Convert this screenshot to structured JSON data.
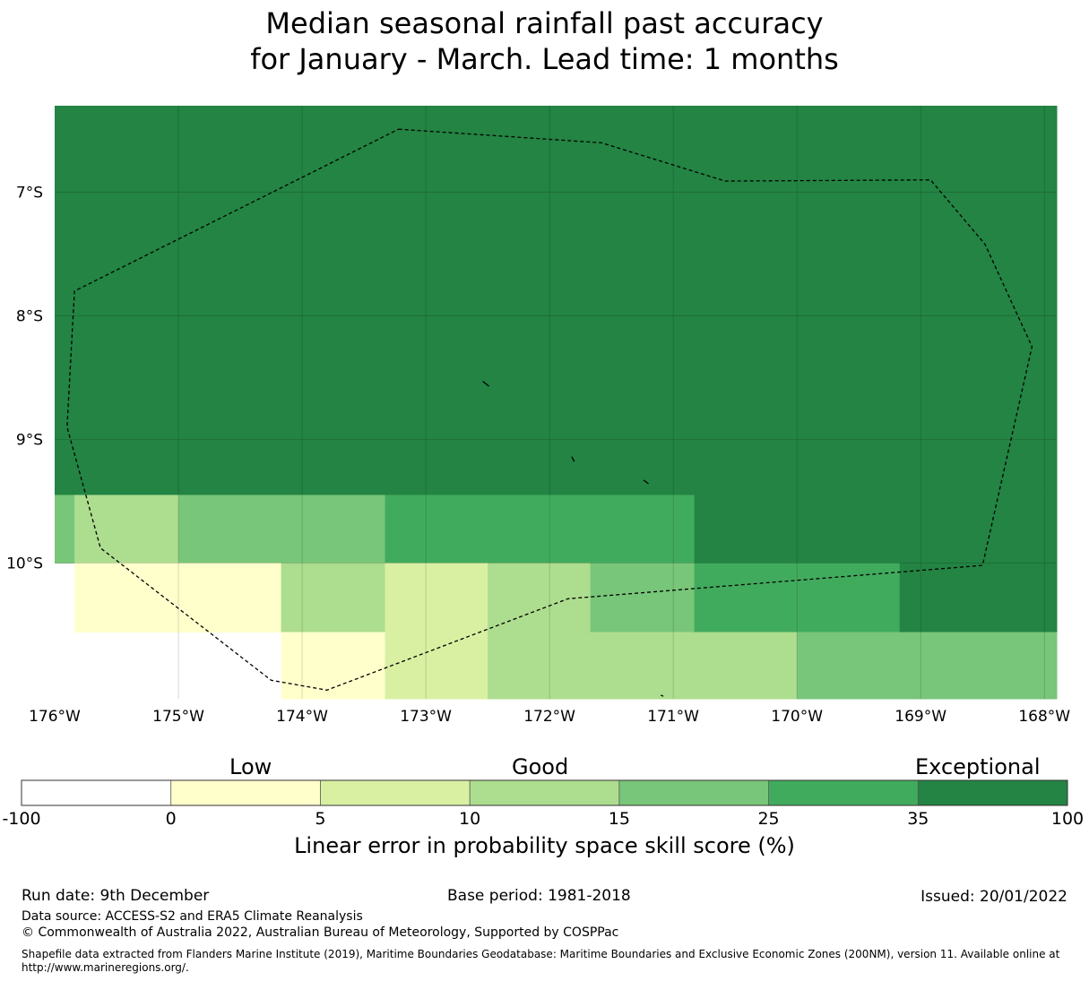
{
  "title": {
    "line1": "Median seasonal rainfall past accuracy",
    "line2": "for January - March. Lead time: 1 months"
  },
  "map": {
    "lon_range": [
      -176,
      -167.9
    ],
    "lat_range": [
      -11.1,
      -6.3
    ],
    "lon_ticks": [
      {
        "lon": -176,
        "label": "176°W"
      },
      {
        "lon": -175,
        "label": "175°W"
      },
      {
        "lon": -174,
        "label": "174°W"
      },
      {
        "lon": -173,
        "label": "173°W"
      },
      {
        "lon": -172,
        "label": "172°W"
      },
      {
        "lon": -171,
        "label": "171°W"
      },
      {
        "lon": -170,
        "label": "170°W"
      },
      {
        "lon": -169,
        "label": "169°W"
      },
      {
        "lon": -168,
        "label": "168°W"
      }
    ],
    "lat_ticks": [
      {
        "lat": -7,
        "label": "7°S"
      },
      {
        "lat": -8,
        "label": "8°S"
      },
      {
        "lat": -9,
        "label": "9°S"
      },
      {
        "lat": -10,
        "label": "10°S"
      }
    ],
    "cells": [
      {
        "lon0": -176.0,
        "lon1": -167.9,
        "lat0": -9.45,
        "lat1": -6.3,
        "score": 40
      },
      {
        "lon0": -176.0,
        "lon1": -175.84,
        "lat0": -10.0,
        "lat1": -9.45,
        "score": 20
      },
      {
        "lon0": -175.84,
        "lon1": -175.0,
        "lat0": -10.0,
        "lat1": -9.45,
        "score": 12
      },
      {
        "lon0": -175.0,
        "lon1": -173.33,
        "lat0": -10.0,
        "lat1": -9.45,
        "score": 20
      },
      {
        "lon0": -173.33,
        "lon1": -170.83,
        "lat0": -10.0,
        "lat1": -9.45,
        "score": 30
      },
      {
        "lon0": -170.83,
        "lon1": -167.9,
        "lat0": -10.0,
        "lat1": -9.45,
        "score": 40
      },
      {
        "lon0": -175.84,
        "lon1": -174.17,
        "lat0": -10.56,
        "lat1": -10.0,
        "score": 2
      },
      {
        "lon0": -174.17,
        "lon1": -173.33,
        "lat0": -10.56,
        "lat1": -10.0,
        "score": 12
      },
      {
        "lon0": -173.33,
        "lon1": -172.5,
        "lat0": -10.56,
        "lat1": -10.0,
        "score": 7
      },
      {
        "lon0": -172.5,
        "lon1": -171.67,
        "lat0": -10.56,
        "lat1": -10.0,
        "score": 12
      },
      {
        "lon0": -171.67,
        "lon1": -170.83,
        "lat0": -10.56,
        "lat1": -10.0,
        "score": 20
      },
      {
        "lon0": -170.83,
        "lon1": -169.17,
        "lat0": -10.56,
        "lat1": -10.0,
        "score": 30
      },
      {
        "lon0": -169.17,
        "lon1": -167.9,
        "lat0": -10.56,
        "lat1": -10.0,
        "score": 40
      },
      {
        "lon0": -174.17,
        "lon1": -173.33,
        "lat0": -11.1,
        "lat1": -10.56,
        "score": 2
      },
      {
        "lon0": -173.33,
        "lon1": -172.5,
        "lat0": -11.1,
        "lat1": -10.56,
        "score": 7
      },
      {
        "lon0": -172.5,
        "lon1": -170.0,
        "lat0": -11.1,
        "lat1": -10.56,
        "score": 12
      },
      {
        "lon0": -170.0,
        "lon1": -167.9,
        "lat0": -11.1,
        "lat1": -10.56,
        "score": 20
      }
    ],
    "eez_boundary": [
      [
        -173.22,
        -6.49
      ],
      [
        -171.58,
        -6.6
      ],
      [
        -170.58,
        -6.91
      ],
      [
        -168.92,
        -6.9
      ],
      [
        -168.48,
        -7.42
      ],
      [
        -168.1,
        -8.25
      ],
      [
        -168.5,
        -10.02
      ],
      [
        -171.85,
        -10.29
      ],
      [
        -173.8,
        -11.03
      ],
      [
        -174.25,
        -10.95
      ],
      [
        -175.63,
        -9.88
      ],
      [
        -175.9,
        -8.9
      ],
      [
        -175.84,
        -7.8
      ],
      [
        -173.22,
        -6.49
      ]
    ],
    "islands": [
      [
        [
          -172.54,
          -8.53
        ],
        [
          -172.49,
          -8.57
        ]
      ],
      [
        [
          -171.82,
          -9.14
        ],
        [
          -171.8,
          -9.18
        ]
      ],
      [
        [
          -171.24,
          -9.33
        ],
        [
          -171.2,
          -9.36
        ]
      ],
      [
        [
          -171.1,
          -11.07
        ],
        [
          -171.08,
          -11.08
        ]
      ]
    ]
  },
  "colorbar": {
    "title": "Linear error in probability space skill score (%)",
    "categories": [
      "Low",
      "Good",
      "Exceptional"
    ],
    "bins": [
      {
        "min": -100,
        "max": 0,
        "color": "#ffffff"
      },
      {
        "min": 0,
        "max": 5,
        "color": "#ffffcc"
      },
      {
        "min": 5,
        "max": 10,
        "color": "#d9f0a3"
      },
      {
        "min": 10,
        "max": 15,
        "color": "#addd8e"
      },
      {
        "min": 15,
        "max": 25,
        "color": "#78c679"
      },
      {
        "min": 25,
        "max": 35,
        "color": "#41ab5d"
      },
      {
        "min": 35,
        "max": 100,
        "color": "#238443"
      }
    ],
    "tick_labels": [
      "-100",
      "0",
      "5",
      "10",
      "15",
      "25",
      "35",
      "100"
    ]
  },
  "footer": {
    "run_date": "Run date: 9th December",
    "base_period": "Base period: 1981-2018",
    "issued": "Issued: 20/01/2022",
    "data_source": "Data source: ACCESS-S2 and ERA5 Climate Reanalysis",
    "copyright": "© Commonwealth of Australia 2022, Australian Bureau of Meteorology, Supported by COSPPac",
    "shapefile": "Shapefile data extracted from Flanders Marine Institute (2019), Maritime Boundaries Geodatabase: Maritime Boundaries and Exclusive Economic Zones (200NM), version 11. Available online at http://www.marineregions.org/."
  }
}
